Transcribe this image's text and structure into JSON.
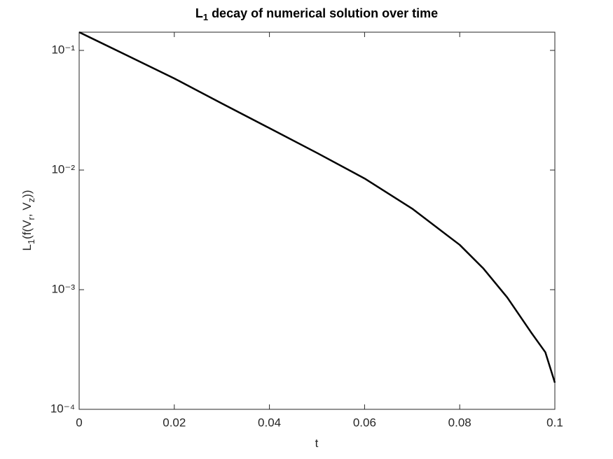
{
  "chart_data": {
    "type": "line",
    "title": [
      {
        "text": "L"
      },
      {
        "text": "1",
        "sub": true
      },
      {
        "text": " decay of numerical solution over time"
      }
    ],
    "xlabel": [
      {
        "text": "t"
      }
    ],
    "ylabel": [
      {
        "text": "L"
      },
      {
        "text": "1",
        "sub": true
      },
      {
        "text": "(f(V"
      },
      {
        "text": "r",
        "sub": true
      },
      {
        "text": ", V"
      },
      {
        "text": "z",
        "sub": true
      },
      {
        "text": "))"
      }
    ],
    "x": [
      0,
      0.01,
      0.02,
      0.03,
      0.04,
      0.05,
      0.06,
      0.07,
      0.08,
      0.085,
      0.09,
      0.095,
      0.098,
      0.1
    ],
    "series": [
      {
        "color": "#000000",
        "values": [
          0.142,
          0.091,
          0.0583,
          0.036,
          0.0224,
          0.0139,
          0.0085,
          0.00476,
          0.00237,
          0.0015,
          0.00086,
          0.00044,
          0.0003,
          0.000167
        ]
      }
    ],
    "xlim": [
      0,
      0.1
    ],
    "xticks": [
      0,
      0.02,
      0.04,
      0.06,
      0.08,
      0.1
    ],
    "ylim": [
      0.0001,
      0.142
    ],
    "yscale": "log",
    "yticks": [
      {
        "value": 0.0001,
        "label": "10⁻⁴"
      },
      {
        "value": 0.001,
        "label": "10⁻³"
      },
      {
        "value": 0.01,
        "label": "10⁻²"
      },
      {
        "value": 0.1,
        "label": "10⁻¹"
      }
    ],
    "grid": false
  }
}
